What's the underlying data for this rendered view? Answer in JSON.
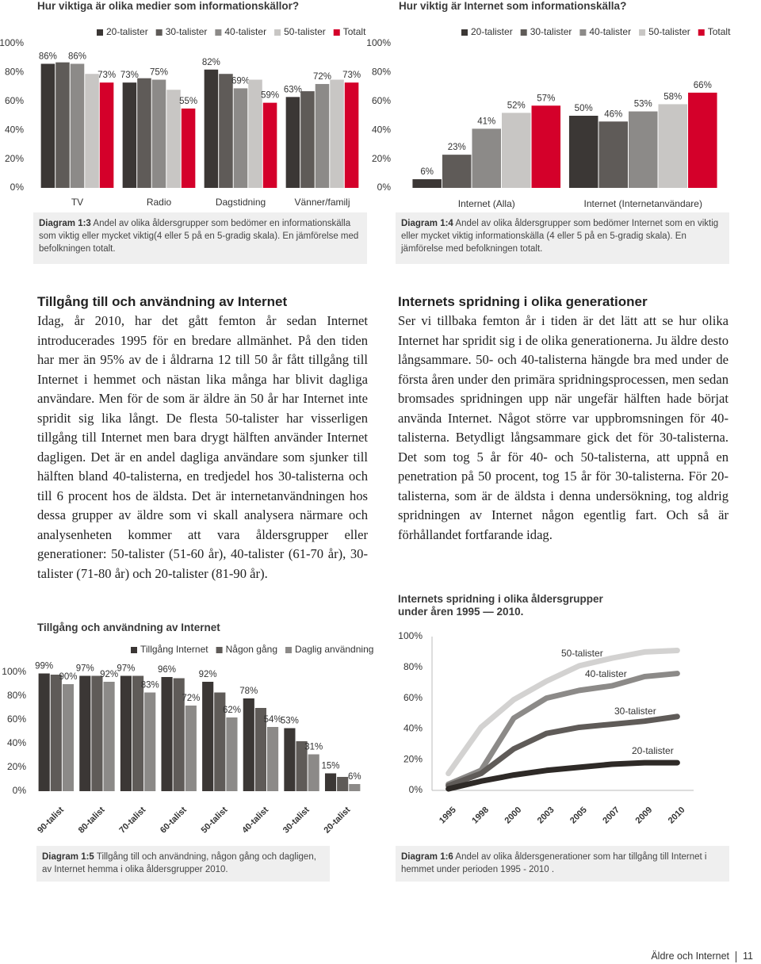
{
  "chart_data": [
    {
      "type": "bar",
      "title": "Hur viktiga är olika medier som informationskällor?",
      "categories": [
        "TV",
        "Radio",
        "Dagstidning",
        "Vänner/familj"
      ],
      "series": [
        {
          "name": "20-talister",
          "color": "#3b3735",
          "values": [
            86,
            73,
            82,
            63
          ],
          "value_labels": [
            "86%",
            "73%",
            "82%",
            "63%"
          ]
        },
        {
          "name": "30-talister",
          "color": "#5f5b58",
          "values": [
            87,
            76,
            79,
            67
          ]
        },
        {
          "name": "40-talister",
          "color": "#8c8a88",
          "values": [
            86,
            75,
            69,
            72
          ],
          "value_labels": [
            "86%",
            "75%",
            "69%",
            "72%"
          ]
        },
        {
          "name": "50-talister",
          "color": "#c8c6c4",
          "values": [
            79,
            68,
            75,
            75
          ]
        },
        {
          "name": "Totalt",
          "color": "#d4002a",
          "values": [
            73,
            55,
            59,
            73
          ],
          "value_labels": [
            "73%",
            "55%",
            "59%",
            "73%"
          ]
        }
      ],
      "ylim": [
        0,
        100
      ],
      "yticks": [
        {
          "value": 0,
          "label": "0%"
        },
        {
          "value": 20,
          "label": "20%"
        },
        {
          "value": 40,
          "label": "40%"
        },
        {
          "value": 60,
          "label": "60%"
        },
        {
          "value": 80,
          "label": "80%"
        },
        {
          "value": 100,
          "label": "100%"
        }
      ],
      "legend": "top"
    },
    {
      "type": "bar",
      "title": "Hur viktig är Internet som informationskälla?",
      "categories": [
        "Internet (Alla)",
        "Internet (Internetanvändare)"
      ],
      "series": [
        {
          "name": "20-talister",
          "color": "#3b3735",
          "values": [
            6,
            50
          ],
          "value_labels": [
            "6%",
            "50%"
          ]
        },
        {
          "name": "30-talister",
          "color": "#5f5b58",
          "values": [
            23,
            46
          ],
          "value_labels": [
            "23%",
            "46%"
          ]
        },
        {
          "name": "40-talister",
          "color": "#8c8a88",
          "values": [
            41,
            53
          ],
          "value_labels": [
            "41%",
            "53%"
          ]
        },
        {
          "name": "50-talister",
          "color": "#c8c6c4",
          "values": [
            52,
            58
          ],
          "value_labels": [
            "52%",
            "58%"
          ]
        },
        {
          "name": "Totalt",
          "color": "#d4002a",
          "values": [
            57,
            66
          ],
          "value_labels": [
            "57%",
            "66%"
          ]
        }
      ],
      "ylim": [
        0,
        100
      ],
      "yticks": [
        {
          "value": 0,
          "label": "0%"
        },
        {
          "value": 20,
          "label": "20%"
        },
        {
          "value": 40,
          "label": "40%"
        },
        {
          "value": 60,
          "label": "60%"
        },
        {
          "value": 80,
          "label": "80%"
        },
        {
          "value": 100,
          "label": "100%"
        }
      ],
      "legend": "top"
    },
    {
      "type": "bar",
      "title": "Tillgång och användning av Internet",
      "categories": [
        "90-talist",
        "80-talist",
        "70-talist",
        "60-talist",
        "50-talist",
        "40-talist",
        "30-talist",
        "20-talist"
      ],
      "series": [
        {
          "name": "Tillgång Internet",
          "color": "#3b3735",
          "values": [
            99,
            97,
            97,
            96,
            92,
            78,
            53,
            15
          ],
          "value_labels": [
            "99%",
            "97%",
            "97%",
            "96%",
            "92%",
            "78%",
            "53%",
            "15%"
          ]
        },
        {
          "name": "Någon gång",
          "color": "#5f5b58",
          "values": [
            98,
            97,
            97,
            95,
            83,
            70,
            42,
            12
          ]
        },
        {
          "name": "Daglig användning",
          "color": "#8c8a88",
          "values": [
            90,
            92,
            83,
            72,
            62,
            54,
            31,
            6
          ],
          "value_labels": [
            "90%",
            "92%",
            "83%",
            "72%",
            "62%",
            "54%",
            "31%",
            "6%"
          ]
        }
      ],
      "ylim": [
        0,
        100
      ],
      "yticks": [
        {
          "value": 0,
          "label": "0%"
        },
        {
          "value": 20,
          "label": "20%"
        },
        {
          "value": 40,
          "label": "40%"
        },
        {
          "value": 60,
          "label": "60%"
        },
        {
          "value": 80,
          "label": "80%"
        },
        {
          "value": 100,
          "label": "100%"
        }
      ],
      "legend": "top"
    },
    {
      "type": "line",
      "title": "Internets spridning i olika åldersgrupper under åren 1995 — 2010.",
      "categories": [
        "1995",
        "1998",
        "2000",
        "2003",
        "2005",
        "2007",
        "2009",
        "2010"
      ],
      "series": [
        {
          "name": "50-talister",
          "color": "#d3d2d1",
          "values": [
            11,
            41,
            59,
            71,
            81,
            86,
            90,
            91
          ]
        },
        {
          "name": "40-talister",
          "color": "#8c8a88",
          "values": [
            4,
            13,
            47,
            60,
            65,
            68,
            74,
            76
          ]
        },
        {
          "name": "30-talister",
          "color": "#5f5b58",
          "values": [
            3,
            11,
            27,
            37,
            41,
            43,
            45,
            48
          ]
        },
        {
          "name": "20-talister",
          "color": "#2e2a27",
          "values": [
            1,
            6,
            10,
            13,
            15,
            17,
            18,
            18
          ]
        }
      ],
      "ylim": [
        0,
        100
      ],
      "yticks": [
        {
          "value": 0,
          "label": "0%"
        },
        {
          "value": 20,
          "label": "20%"
        },
        {
          "value": 40,
          "label": "40%"
        },
        {
          "value": 60,
          "label": "60%"
        },
        {
          "value": 80,
          "label": "80%"
        },
        {
          "value": 100,
          "label": "100%"
        }
      ],
      "legend": "inline"
    }
  ],
  "captions": [
    {
      "label": "Diagram 1:3",
      "text": "Andel av olika åldersgrupper som bedömer en informationskälla som viktig eller mycket viktig(4 eller 5 på en 5-gradig skala). En jämförelse med befolkningen totalt."
    },
    {
      "label": "Diagram 1:4",
      "text": "Andel av olika åldersgrupper som bedömer Internet som en viktig eller mycket viktig informationskälla (4 eller 5 på en 5-gradig skala). En jämförelse med befolkningen totalt."
    },
    {
      "label": "Diagram 1:5",
      "text": "Tillgång till och användning, någon gång och dagligen, av Internet hemma i olika åldersgrupper 2010."
    },
    {
      "label": "Diagram 1:6",
      "text": "Andel av olika åldersgenerationer som har tillgång till Internet i hemmet under perioden 1995 - 2010 ."
    }
  ],
  "sections": [
    {
      "heading": "Tillgång till och användning av Internet",
      "body": "Idag, år 2010, har det gått femton år sedan Internet introducerades 1995 för en bredare allmänhet. På den tiden har mer än 95% av de i åldrarna 12 till 50 år fått tillgång till Internet i hemmet och nästan lika många har blivit dagliga användare. Men för de som är äldre än 50 år har Internet inte spridit sig lika långt. De flesta 50-talister har visserligen tillgång till Internet men bara drygt hälften använder Internet dagligen. Det är en andel dagliga användare som sjunker till hälften bland 40-talisterna, en tredjedel hos 30-talisterna och till 6 procent hos de äldsta. Det är internetanvändningen hos dessa grupper av äldre som vi skall analysera närmare och analysenheten kommer att vara åldersgrupper eller generationer: 50-talister (51-60 år), 40-talister (61-70 år), 30-talister (71-80 år) och 20-talister (81-90 år)."
    },
    {
      "heading": "Internets spridning i olika generationer",
      "body": "Ser vi tillbaka femton år i tiden är det lätt att se hur olika Internet har spridit sig i de olika generationerna. Ju äldre desto långsammare. 50- och 40-talisterna hängde bra med under de första åren under den primära spridningsprocessen, men sedan bromsades spridningen upp när ungefär hälften hade börjat använda Internet. Något större var uppbromsningen för 40-talisterna. Betydligt långsammare gick det för 30-talisterna. Det som tog 5 år för 40- och 50-talisterna, att uppnå en penetration på 50 procent, tog 15 år för 30-talisterna. För 20-talisterna, som är de äldsta i denna undersökning, tog aldrig spridningen av Internet någon egentlig fart. Och så är förhållandet fortfarande idag."
    }
  ],
  "footer": {
    "title": "Äldre och Internet",
    "page": "11"
  }
}
